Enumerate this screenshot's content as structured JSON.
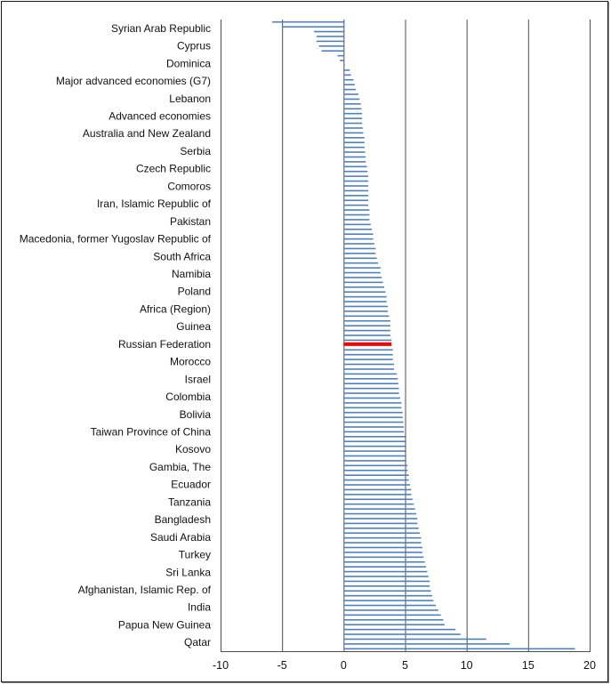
{
  "chart_data": {
    "type": "bar",
    "orientation": "horizontal",
    "xlim": [
      -10,
      20
    ],
    "xticks": [
      "-10",
      "-5",
      "0",
      "5",
      "10",
      "15",
      "20"
    ],
    "grid": "vertical",
    "bar_color": "#4f81bd",
    "highlight_color": "#ff0000",
    "highlight_category": "Russian Federation",
    "category_labels": [
      "Syrian Arab Republic",
      "Cyprus",
      "Dominica",
      "Major advanced economies (G7)",
      "Lebanon",
      "Advanced economies",
      "Australia and New Zealand",
      "Serbia",
      "Czech Republic",
      "Comoros",
      "Iran, Islamic Republic of",
      "Pakistan",
      "Macedonia, former Yugoslav Republic of",
      "South Africa",
      "Namibia",
      "Poland",
      "Africa (Region)",
      "Guinea",
      "Russian Federation",
      "Morocco",
      "Israel",
      "Colombia",
      "Bolivia",
      "Taiwan Province of China",
      "Kosovo",
      "Gambia, The",
      "Ecuador",
      "Tanzania",
      "Bangladesh",
      "Saudi Arabia",
      "Turkey",
      "Sri Lanka",
      "Afghanistan, Islamic Rep. of",
      "India",
      "Papua New Guinea",
      "Qatar"
    ],
    "values": [
      -5.8,
      -5.0,
      -2.4,
      -2.2,
      -2.2,
      -2.0,
      -1.8,
      -0.5,
      -0.3,
      0.1,
      0.5,
      0.6,
      0.8,
      0.9,
      1.0,
      1.2,
      1.3,
      1.4,
      1.45,
      1.5,
      1.5,
      1.5,
      1.55,
      1.6,
      1.7,
      1.7,
      1.7,
      1.75,
      1.8,
      1.8,
      1.9,
      1.95,
      2.0,
      2.0,
      2.0,
      2.0,
      2.0,
      2.0,
      2.0,
      2.1,
      2.1,
      2.1,
      2.2,
      2.3,
      2.4,
      2.4,
      2.5,
      2.6,
      2.6,
      2.7,
      2.8,
      3.0,
      3.0,
      3.1,
      3.2,
      3.3,
      3.4,
      3.5,
      3.5,
      3.6,
      3.6,
      3.7,
      3.8,
      3.8,
      3.8,
      3.8,
      3.9,
      3.9,
      4.0,
      4.0,
      4.0,
      4.1,
      4.1,
      4.3,
      4.4,
      4.45,
      4.5,
      4.5,
      4.6,
      4.7,
      4.7,
      4.8,
      4.8,
      4.85,
      4.9,
      4.9,
      5.0,
      5.0,
      5.0,
      5.0,
      5.1,
      5.1,
      5.2,
      5.2,
      5.3,
      5.3,
      5.4,
      5.5,
      5.5,
      5.6,
      5.7,
      5.8,
      5.9,
      6.0,
      6.0,
      6.1,
      6.2,
      6.3,
      6.3,
      6.4,
      6.4,
      6.5,
      6.6,
      6.7,
      6.8,
      6.9,
      7.0,
      7.0,
      7.1,
      7.2,
      7.3,
      7.5,
      7.7,
      7.9,
      8.1,
      8.2,
      9.1,
      9.5,
      11.6,
      13.5,
      18.8
    ]
  }
}
